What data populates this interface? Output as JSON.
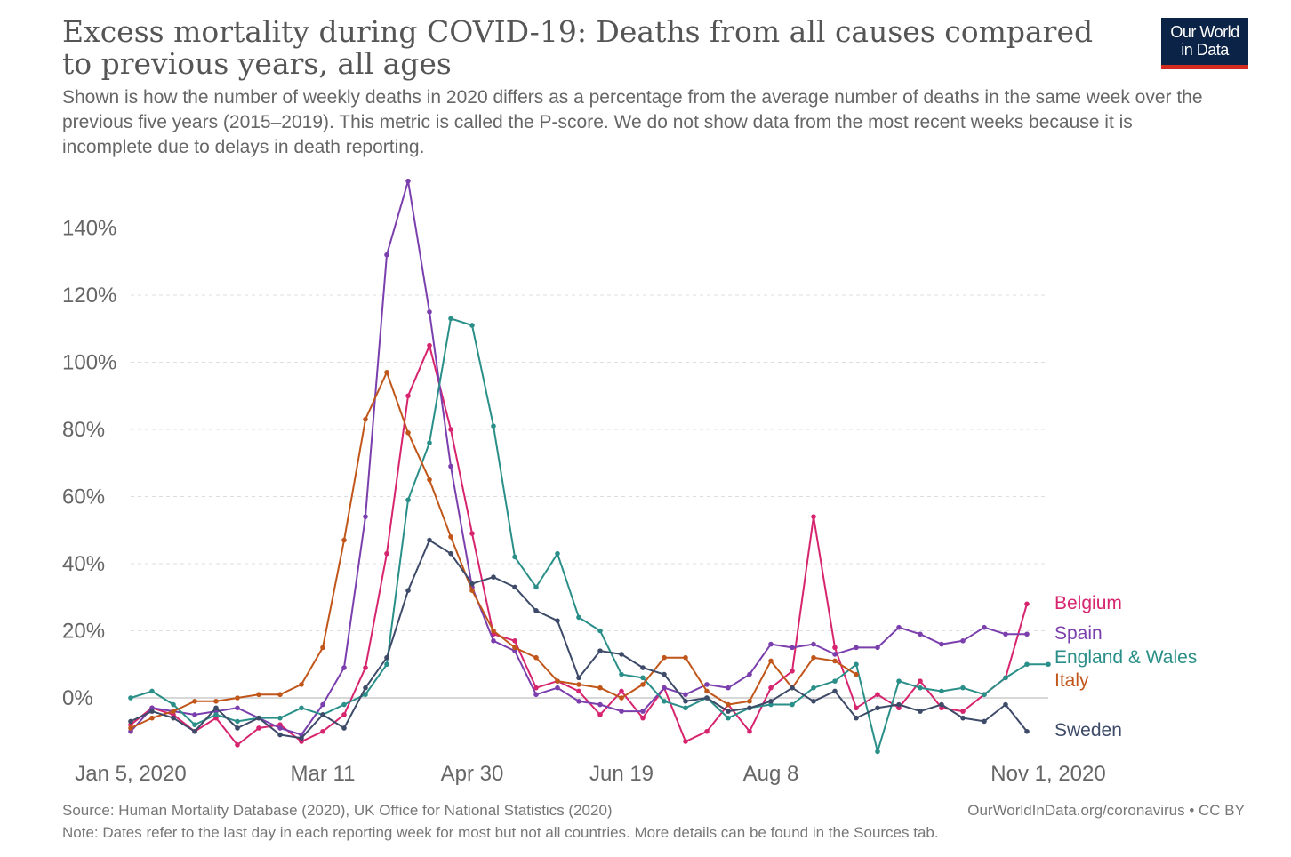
{
  "header": {
    "title": "Excess mortality during COVID-19: Deaths from all causes compared to previous years, all ages",
    "subtitle": "Shown is how the number of weekly deaths in 2020 differs as a percentage from the average number of deaths in the same week over the previous five years (2015–2019). This metric is called the P-score. We do not show data from the most recent weeks because it is incomplete due to delays in death reporting."
  },
  "logo": {
    "line1": "Our World",
    "line2": "in Data",
    "bg_color": "#0b2346",
    "accent_color": "#d42b21"
  },
  "footer": {
    "source": "Source: Human Mortality Database (2020), UK Office for National Statistics (2020)",
    "note": "Note: Dates refer to the last day in each reporting week for most but not all countries. More details can be found in the Sources tab.",
    "credit": "OurWorldInData.org/coronavirus • CC BY"
  },
  "chart_data": {
    "type": "line",
    "title": "Excess mortality during COVID-19: Deaths from all causes compared to previous years, all ages",
    "xlabel": "",
    "ylabel": "",
    "x_unit": "week index (week 1 = Jan 5, 2020)",
    "xlim": [
      1,
      44
    ],
    "ylim": [
      -15,
      145
    ],
    "y_ticks": [
      0,
      20,
      40,
      60,
      80,
      100,
      120,
      140
    ],
    "y_tick_labels": [
      "0%",
      "20%",
      "40%",
      "60%",
      "80%",
      "100%",
      "120%",
      "140%"
    ],
    "x_ticks": [
      1,
      10,
      17,
      24,
      31,
      44
    ],
    "x_tick_labels": [
      "Jan 5, 2020",
      "Mar 11",
      "Apr 30",
      "Jun 19",
      "Aug 8",
      "Nov 1, 2020"
    ],
    "grid": "horizontal dashed",
    "legend": "right, labels at series ends",
    "series": [
      {
        "name": "Belgium",
        "color": "#d6246e",
        "x": [
          1,
          2,
          3,
          4,
          5,
          6,
          7,
          8,
          9,
          10,
          11,
          12,
          13,
          14,
          15,
          16,
          17,
          18,
          19,
          20,
          21,
          22,
          23,
          24,
          25,
          26,
          27,
          28,
          29,
          30,
          31,
          32,
          33,
          34,
          35,
          36,
          37,
          38,
          39,
          40,
          41,
          42,
          43
        ],
        "values": [
          -8,
          -3,
          -5,
          -10,
          -6,
          -14,
          -9,
          -8,
          -13,
          -10,
          -5,
          9,
          43,
          90,
          105,
          80,
          49,
          19,
          17,
          3,
          5,
          2,
          -5,
          2,
          -6,
          3,
          -13,
          -10,
          -2,
          -10,
          3,
          8,
          54,
          15,
          -3,
          1,
          -3,
          5,
          -3,
          -4,
          1,
          6,
          28
        ]
      },
      {
        "name": "Spain",
        "color": "#7a3fad",
        "x": [
          1,
          2,
          3,
          4,
          5,
          6,
          7,
          8,
          9,
          10,
          11,
          12,
          13,
          14,
          15,
          16,
          17,
          18,
          19,
          20,
          21,
          22,
          23,
          24,
          25,
          26,
          27,
          28,
          29,
          30,
          31,
          32,
          33,
          34,
          35,
          36,
          37,
          38,
          39,
          40,
          41,
          42,
          43
        ],
        "values": [
          -10,
          -3,
          -4,
          -5,
          -4,
          -3,
          -6,
          -9,
          -11,
          -2,
          9,
          54,
          132,
          154,
          115,
          69,
          33,
          17,
          14,
          1,
          3,
          -1,
          -2,
          -4,
          -4,
          3,
          1,
          4,
          3,
          7,
          16,
          15,
          16,
          13,
          15,
          15,
          21,
          19,
          16,
          17,
          21,
          19,
          19
        ]
      },
      {
        "name": "England & Wales",
        "color": "#2a8f88",
        "x": [
          1,
          2,
          3,
          4,
          5,
          6,
          7,
          8,
          9,
          10,
          11,
          12,
          13,
          14,
          15,
          16,
          17,
          18,
          19,
          20,
          21,
          22,
          23,
          24,
          25,
          26,
          27,
          28,
          29,
          30,
          31,
          32,
          33,
          34,
          35,
          36,
          37,
          38,
          39,
          40,
          41,
          42,
          43,
          44
        ],
        "values": [
          0,
          2,
          -2,
          -8,
          -5,
          -7,
          -6,
          -6,
          -3,
          -5,
          -2,
          1,
          10,
          59,
          76,
          113,
          111,
          81,
          42,
          33,
          43,
          24,
          20,
          7,
          6,
          -1,
          -3,
          0,
          -6,
          -3,
          -2,
          -2,
          3,
          5,
          10,
          -16,
          5,
          3,
          2,
          3,
          1,
          6,
          10,
          10
        ]
      },
      {
        "name": "Italy",
        "color": "#c0561a",
        "x": [
          1,
          2,
          3,
          4,
          5,
          6,
          7,
          8,
          9,
          10,
          11,
          12,
          13,
          14,
          15,
          16,
          17,
          18,
          19,
          20,
          21,
          22,
          23,
          24,
          25,
          26,
          27,
          28,
          29,
          30,
          31,
          32,
          33,
          34,
          35
        ],
        "values": [
          -9,
          -6,
          -4,
          -1,
          -1,
          0,
          1,
          1,
          4,
          15,
          47,
          83,
          97,
          79,
          65,
          48,
          32,
          20,
          15,
          12,
          5,
          4,
          3,
          0,
          4,
          12,
          12,
          2,
          -2,
          -1,
          11,
          3,
          12,
          11,
          7
        ]
      },
      {
        "name": "Sweden",
        "color": "#3d4a68",
        "x": [
          1,
          2,
          3,
          4,
          5,
          6,
          7,
          8,
          9,
          10,
          11,
          12,
          13,
          14,
          15,
          16,
          17,
          18,
          19,
          20,
          21,
          22,
          23,
          24,
          25,
          26,
          27,
          28,
          29,
          30,
          31,
          32,
          33,
          34,
          35,
          36,
          37,
          38,
          39,
          40,
          41,
          42,
          43
        ],
        "values": [
          -7,
          -4,
          -6,
          -10,
          -3,
          -9,
          -6,
          -11,
          -12,
          -5,
          -9,
          3,
          12,
          32,
          47,
          43,
          34,
          36,
          33,
          26,
          23,
          6,
          14,
          13,
          9,
          7,
          -1,
          0,
          -4,
          -3,
          -1,
          3,
          -1,
          2,
          -6,
          -3,
          -2,
          -4,
          -2,
          -6,
          -7,
          -2,
          -10
        ]
      }
    ]
  }
}
